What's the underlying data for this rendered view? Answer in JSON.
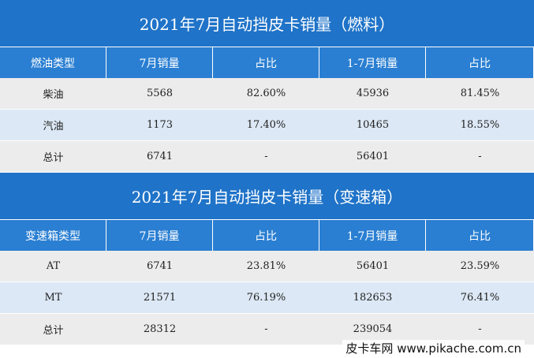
{
  "tables": [
    {
      "title": "2021年7月自动挡皮卡销量（燃料）",
      "header": [
        "燃油类型",
        "7月销量",
        "占比",
        "1-7月销量",
        "占比"
      ],
      "rows": [
        [
          "柴油",
          "5568",
          "82.60%",
          "45936",
          "81.45%"
        ],
        [
          "汽油",
          "1173",
          "17.40%",
          "10465",
          "18.55%"
        ],
        [
          "总计",
          "6741",
          "-",
          "56401",
          "-"
        ]
      ]
    },
    {
      "title": "2021年7月自动挡皮卡销量（变速箱）",
      "header": [
        "变速箱类型",
        "7月销量",
        "占比",
        "1-7月销量",
        "占比"
      ],
      "rows": [
        [
          "AT",
          "6741",
          "23.81%",
          "56401",
          "23.59%"
        ],
        [
          "MT",
          "21571",
          "76.19%",
          "182653",
          "76.41%"
        ],
        [
          "总计",
          "28312",
          "-",
          "239054",
          "-"
        ]
      ]
    }
  ],
  "watermark": "皮卡车网  www.pikache.com.cn"
}
